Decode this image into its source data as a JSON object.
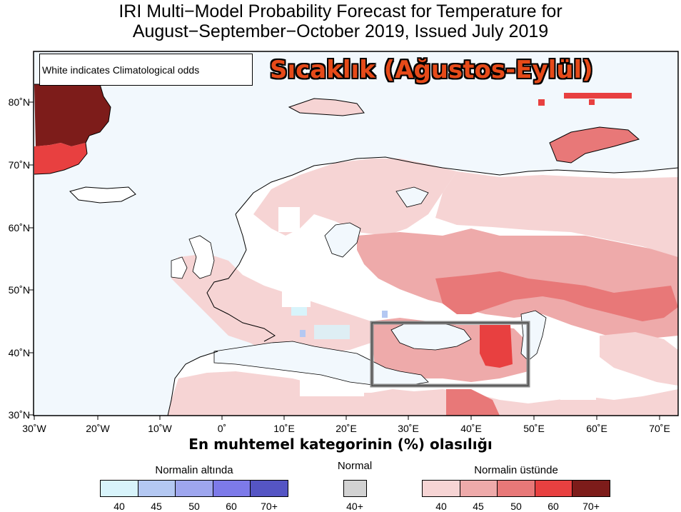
{
  "title": {
    "line1": "IRI Multi−Model Probability Forecast for Temperature for",
    "line2": "August−September−October 2019, Issued July 2019"
  },
  "overlay_title": "Sıcaklık (Ağustos-Eylül)",
  "note": "White indicates Climatological odds",
  "caption": "En muhtemel kategorinin (%) olasılığı",
  "axes": {
    "lat_ticks": [
      "80˚N",
      "70˚N",
      "60˚N",
      "50˚N",
      "40˚N",
      "30˚N"
    ],
    "lon_ticks": [
      "30˚W",
      "20˚W",
      "10˚W",
      "0˚",
      "10˚E",
      "20˚E",
      "30˚E",
      "40˚E",
      "50˚E",
      "60˚E",
      "70˚E"
    ]
  },
  "legend": {
    "below": {
      "title": "Normalin altında",
      "labels": [
        "40",
        "45",
        "50",
        "60",
        "70+"
      ],
      "colors": [
        "#d8f4fb",
        "#b4c8f2",
        "#9ea6ee",
        "#7d7ae9",
        "#5555c4"
      ]
    },
    "normal": {
      "title": "Normal",
      "labels": [
        "40+"
      ],
      "colors": [
        "#d2d2d2"
      ]
    },
    "above": {
      "title": "Normalin üstünde",
      "labels": [
        "40",
        "45",
        "50",
        "60",
        "70+"
      ],
      "colors": [
        "#f6d4d4",
        "#eeaaaa",
        "#e87878",
        "#e84040",
        "#7d1c1a"
      ]
    }
  },
  "map_colors": {
    "ocean": "#f2f8fd",
    "land": "#ffffff",
    "above_40": "#f6d4d4",
    "above_45": "#eeaaaa",
    "above_50": "#e87878",
    "above_60": "#e84040",
    "above_70": "#7d1c1a",
    "below_40": "#d8f4fb",
    "below_45": "#b4c8f2"
  }
}
